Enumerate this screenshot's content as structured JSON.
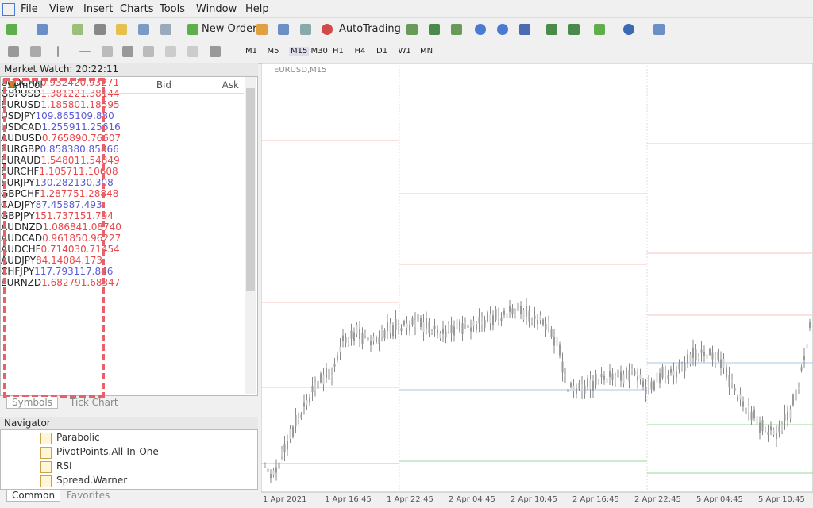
{
  "menu": [
    "File",
    "View",
    "Insert",
    "Charts",
    "Tools",
    "Window",
    "Help"
  ],
  "toolbar": {
    "new_order": "New Order",
    "autotrading": "AutoTrading"
  },
  "timeframes": [
    "M1",
    "M5",
    "M15",
    "M30",
    "H1",
    "H4",
    "D1",
    "W1",
    "MN"
  ],
  "market_watch": {
    "title": "Market Watch: 20:22:11",
    "columns": [
      "Symbol",
      "Bid",
      "Ask"
    ],
    "rows": [
      {
        "symbol": "USDCHF",
        "bid": "0.93242",
        "ask": "0.93271",
        "color": "#e8474c"
      },
      {
        "symbol": "GBPUSD",
        "bid": "1.38122",
        "ask": "1.38144",
        "color": "#e8474c"
      },
      {
        "symbol": "EURUSD",
        "bid": "1.18580",
        "ask": "1.18595",
        "color": "#e8474c"
      },
      {
        "symbol": "USDJPY",
        "bid": "109.865",
        "ask": "109.880",
        "color": "#5a5ad8"
      },
      {
        "symbol": "USDCAD",
        "bid": "1.25591",
        "ask": "1.25616",
        "color": "#5a5ad8"
      },
      {
        "symbol": "AUDUSD",
        "bid": "0.76589",
        "ask": "0.76607",
        "color": "#e8474c"
      },
      {
        "symbol": "EURGBP",
        "bid": "0.85838",
        "ask": "0.85866",
        "color": "#5a5ad8"
      },
      {
        "symbol": "EURAUD",
        "bid": "1.54801",
        "ask": "1.54849",
        "color": "#e8474c"
      },
      {
        "symbol": "EURCHF",
        "bid": "1.10571",
        "ask": "1.10608",
        "color": "#e8474c"
      },
      {
        "symbol": "EURJPY",
        "bid": "130.282",
        "ask": "130.308",
        "color": "#5a5ad8"
      },
      {
        "symbol": "GBPCHF",
        "bid": "1.28775",
        "ask": "1.28848",
        "color": "#e8474c"
      },
      {
        "symbol": "CADJPY",
        "bid": "87.458",
        "ask": "87.493",
        "color": "#5a5ad8"
      },
      {
        "symbol": "GBPJPY",
        "bid": "151.737",
        "ask": "151.794",
        "color": "#e8474c"
      },
      {
        "symbol": "AUDNZD",
        "bid": "1.08684",
        "ask": "1.08740",
        "color": "#e8474c"
      },
      {
        "symbol": "AUDCAD",
        "bid": "0.96185",
        "ask": "0.96227",
        "color": "#e8474c"
      },
      {
        "symbol": "AUDCHF",
        "bid": "0.71403",
        "ask": "0.71454",
        "color": "#e8474c"
      },
      {
        "symbol": "AUDJPY",
        "bid": "84.140",
        "ask": "84.173",
        "color": "#e8474c"
      },
      {
        "symbol": "CHFJPY",
        "bid": "117.793",
        "ask": "117.846",
        "color": "#5a5ad8"
      },
      {
        "symbol": "EURNZD",
        "bid": "1.68279",
        "ask": "1.68347",
        "color": "#e8474c"
      }
    ],
    "tabs": [
      "Symbols",
      "Tick Chart"
    ]
  },
  "navigator": {
    "title": "Navigator",
    "items": [
      "Parabolic",
      "PivotPoints.All-In-One",
      "RSI",
      "Spread.Warner"
    ],
    "tabs": [
      "Common",
      "Favorites"
    ]
  },
  "chart": {
    "label": "EURUSD,M15",
    "x_labels": [
      "1 Apr 2021",
      "1 Apr 16:45",
      "1 Apr 22:45",
      "2 Apr 04:45",
      "2 Apr 10:45",
      "2 Apr 16:45",
      "2 Apr 22:45",
      "5 Apr 04:45",
      "5 Apr 10:45"
    ]
  }
}
